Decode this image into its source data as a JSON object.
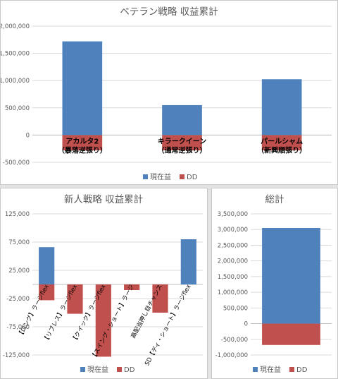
{
  "colors": {
    "profit": "#4f81bd",
    "dd": "#c0504d",
    "grid": "#d9d9d9",
    "axis": "#bfbfbf"
  },
  "chart_data": [
    {
      "type": "bar",
      "title": "ベテラン戦略 収益累計",
      "categories": [
        [
          "アカルタ2",
          "（暴落逆張り）"
        ],
        [
          "キラークイーン",
          "（通常逆張り）"
        ],
        [
          "パールシャム",
          "（新興順張り）"
        ]
      ],
      "series": [
        {
          "name": "現在益",
          "values": [
            1720000,
            550000,
            1025000
          ]
        },
        {
          "name": "DD",
          "values": [
            -280000,
            -280000,
            -280000
          ]
        }
      ],
      "y_ticks": [
        "2,000,000",
        "1,500,000",
        "1,000,000",
        "500,000",
        "0",
        "-500,000"
      ],
      "ylim": [
        -500000,
        2000000
      ],
      "legend": "bottom",
      "grid": true
    },
    {
      "type": "bar",
      "title": "新人戦略 収益累計",
      "categories": [
        "【ロング】ラージflex",
        "【リブレス】ラージflex",
        "【クイック】ラージflex",
        "【スイング・ショート】ラージ",
        "高配当押し目チャンス",
        "SD【ディ・ショート】ラージflex"
      ],
      "series": [
        {
          "name": "現在益",
          "values": [
            66000,
            0,
            0,
            0,
            0,
            80000
          ]
        },
        {
          "name": "DD",
          "values": [
            -28000,
            -52000,
            -128000,
            -10000,
            -50000,
            0
          ]
        }
      ],
      "y_ticks": [
        "125,000",
        "75,000",
        "25,000",
        "-25,000",
        "-75,000",
        "-125,000"
      ],
      "ylim": [
        -125000,
        125000
      ],
      "legend": "bottom",
      "grid": true
    },
    {
      "type": "bar",
      "title": "総計",
      "categories": [
        ""
      ],
      "series": [
        {
          "name": "現在益",
          "values": [
            3050000
          ]
        },
        {
          "name": "DD",
          "values": [
            -680000
          ]
        }
      ],
      "y_ticks": [
        "3,500,000",
        "3,000,000",
        "2,500,000",
        "2,000,000",
        "1,500,000",
        "1,000,000",
        "500,000",
        "0",
        "-500,000",
        "-1,000,000"
      ],
      "ylim": [
        -1000000,
        3500000
      ],
      "legend": "bottom",
      "grid": true
    }
  ]
}
